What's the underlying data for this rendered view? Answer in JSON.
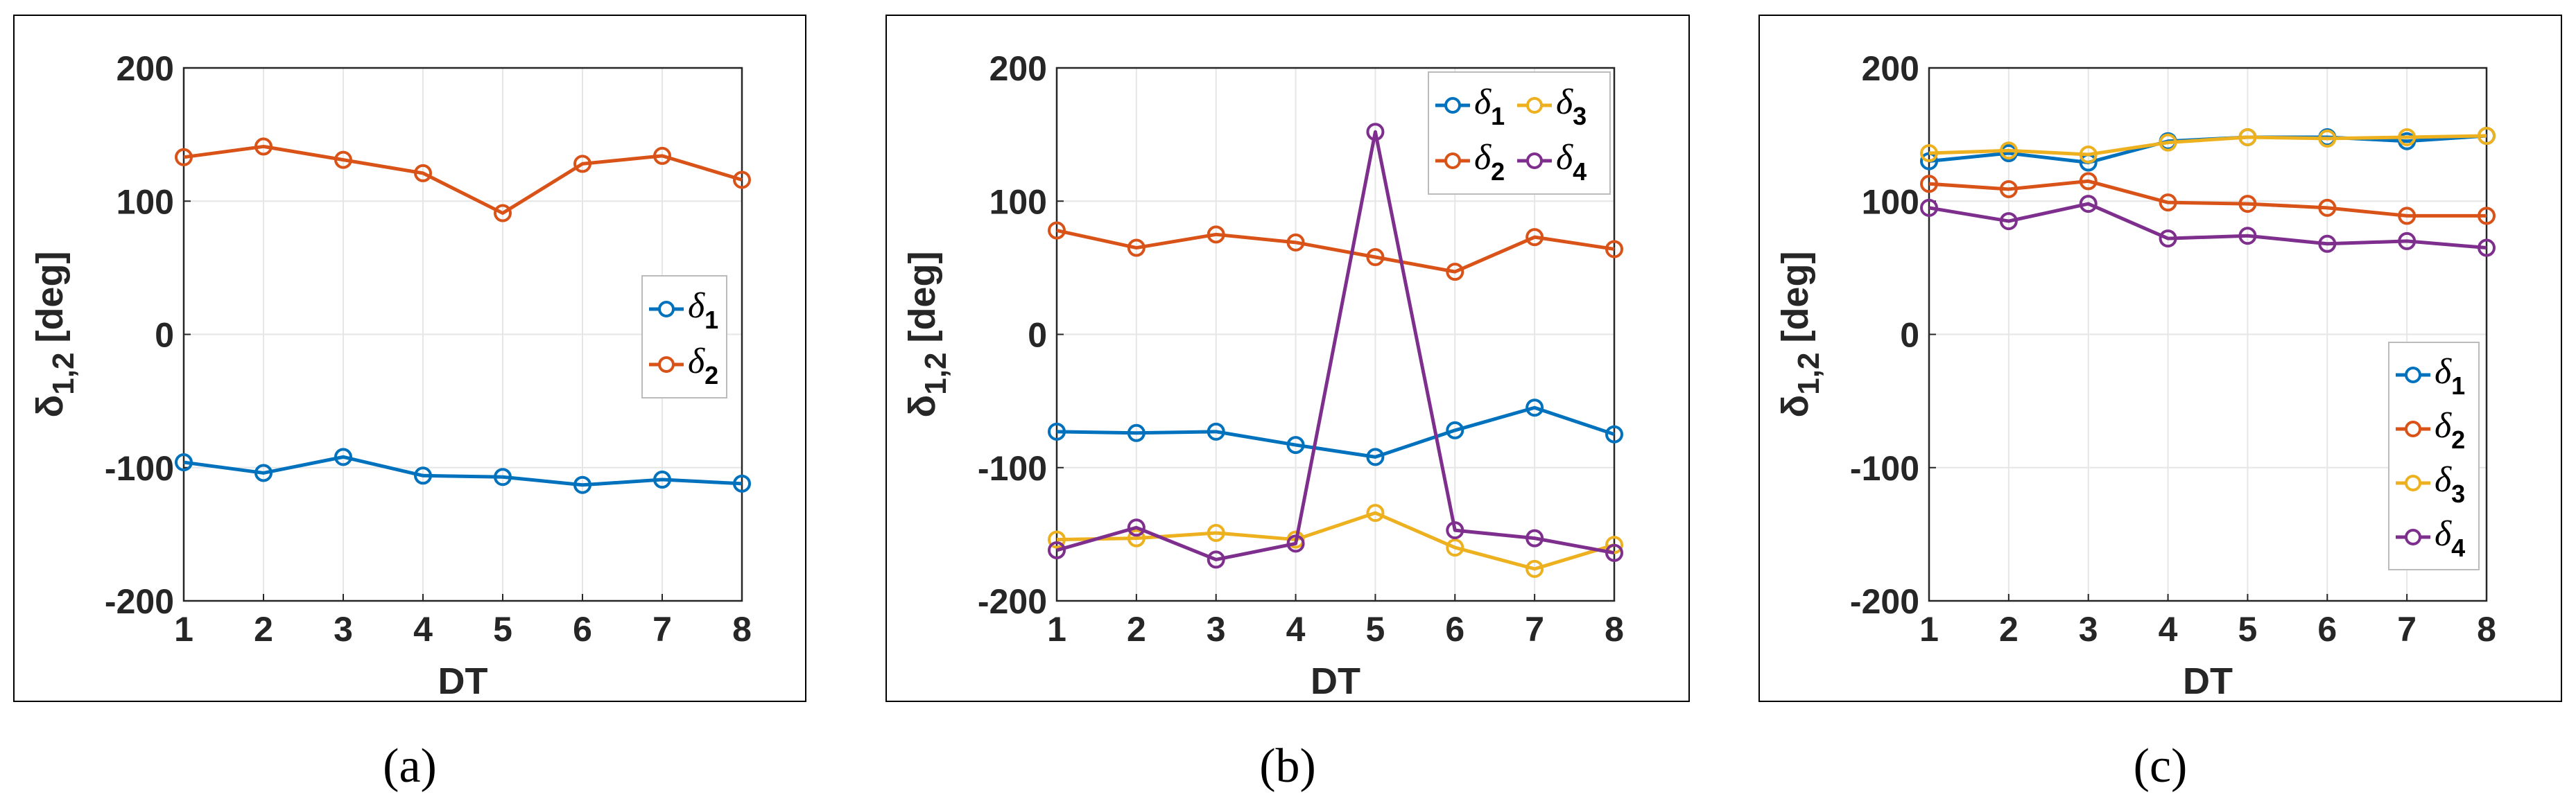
{
  "colors": {
    "delta1": "#0072BD",
    "delta2": "#D95319",
    "delta3": "#EDB120",
    "delta4": "#7E2F8E",
    "axis": "#262626",
    "grid": "#e6e6e6",
    "frame": "#000000"
  },
  "chart_data": [
    {
      "type": "line",
      "panel_label": "(a)",
      "xlabel": "DT",
      "ylabel": "δ",
      "ylabel_sub": "1,2",
      "ylabel_unit": "[deg]",
      "x": [
        1,
        2,
        3,
        4,
        5,
        6,
        7,
        8
      ],
      "xlim": [
        1,
        8
      ],
      "ylim": [
        -200,
        200
      ],
      "yticks": [
        -200,
        -100,
        0,
        100,
        200
      ],
      "grid": true,
      "legend_position": "right-middle",
      "legend_columns": 1,
      "series": [
        {
          "name": "δ",
          "sub": "1",
          "color_key": "delta1",
          "values": [
            -96,
            -104,
            -92,
            -106,
            -107,
            -113,
            -109,
            -112
          ]
        },
        {
          "name": "δ",
          "sub": "2",
          "color_key": "delta2",
          "values": [
            133,
            141,
            131,
            121,
            91,
            128,
            134,
            116
          ]
        }
      ]
    },
    {
      "type": "line",
      "panel_label": "(b)",
      "xlabel": "DT",
      "ylabel": "δ",
      "ylabel_sub": "1,2",
      "ylabel_unit": "[deg]",
      "x": [
        1,
        2,
        3,
        4,
        5,
        6,
        7,
        8
      ],
      "xlim": [
        1,
        8
      ],
      "ylim": [
        -200,
        200
      ],
      "yticks": [
        -200,
        -100,
        0,
        100,
        200
      ],
      "grid": true,
      "legend_position": "top-right",
      "legend_columns": 2,
      "series": [
        {
          "name": "δ",
          "sub": "1",
          "color_key": "delta1",
          "values": [
            -73,
            -74,
            -73,
            -83,
            -92,
            -72,
            -55,
            -75
          ]
        },
        {
          "name": "δ",
          "sub": "2",
          "color_key": "delta2",
          "values": [
            78,
            65,
            75,
            69,
            58,
            47,
            73,
            64
          ]
        },
        {
          "name": "δ",
          "sub": "3",
          "color_key": "delta3",
          "values": [
            -154,
            -153,
            -149,
            -154,
            -134,
            -160,
            -176,
            -158
          ]
        },
        {
          "name": "δ",
          "sub": "4",
          "color_key": "delta4",
          "values": [
            -162,
            -145,
            -169,
            -157,
            152,
            -147,
            -153,
            -164
          ]
        }
      ]
    },
    {
      "type": "line",
      "panel_label": "(c)",
      "xlabel": "DT",
      "ylabel": "δ",
      "ylabel_sub": "1,2",
      "ylabel_unit": "[deg]",
      "x": [
        1,
        2,
        3,
        4,
        5,
        6,
        7,
        8
      ],
      "xlim": [
        1,
        8
      ],
      "ylim": [
        -200,
        200
      ],
      "yticks": [
        -200,
        -100,
        0,
        100,
        200
      ],
      "grid": true,
      "legend_position": "bottom-right",
      "legend_columns": 1,
      "series": [
        {
          "name": "δ",
          "sub": "1",
          "color_key": "delta1",
          "values": [
            130,
            136,
            129,
            145,
            148,
            148,
            145,
            149
          ]
        },
        {
          "name": "δ",
          "sub": "2",
          "color_key": "delta2",
          "values": [
            113,
            109,
            115,
            99,
            98,
            95,
            89,
            89
          ]
        },
        {
          "name": "δ",
          "sub": "3",
          "color_key": "delta3",
          "values": [
            136,
            138,
            135,
            144,
            148,
            147,
            148,
            149
          ]
        },
        {
          "name": "δ",
          "sub": "4",
          "color_key": "delta4",
          "values": [
            95,
            85,
            98,
            72,
            74,
            68,
            70,
            65
          ]
        }
      ]
    }
  ]
}
